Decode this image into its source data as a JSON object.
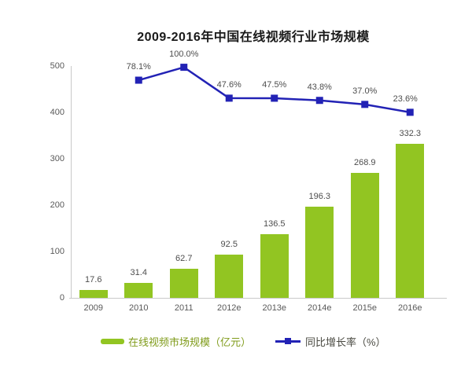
{
  "title": "2009-2016年中国在线视频行业市场规模",
  "chart_data": {
    "type": "bar",
    "title": "2009-2016年中国在线视频行业市场规模",
    "categories": [
      "2009",
      "2010",
      "2011",
      "2012e",
      "2013e",
      "2014e",
      "2015e",
      "2016e"
    ],
    "series": [
      {
        "name": "在线视频市场规模（亿元）",
        "type": "bar",
        "color": "#92C522",
        "values": [
          17.6,
          31.4,
          62.7,
          92.5,
          136.5,
          196.3,
          268.9,
          332.3
        ],
        "labels": [
          "17.6",
          "31.4",
          "62.7",
          "92.5",
          "136.5",
          "196.3",
          "268.9",
          "332.3"
        ]
      },
      {
        "name": "同比增长率（%）",
        "type": "line",
        "color": "#2222B5",
        "values": [
          null,
          78.1,
          100.0,
          47.6,
          47.5,
          43.8,
          37.0,
          23.6
        ],
        "labels": [
          null,
          "78.1%",
          "100.0%",
          "47.6%",
          "47.5%",
          "43.8%",
          "37.0%",
          "23.6%"
        ]
      }
    ],
    "y_axis": {
      "min": 0,
      "max": 500,
      "tick_labels": [
        "0",
        "100",
        "200",
        "300",
        "400",
        "500"
      ]
    },
    "grid": "off",
    "legend_position": "bottom",
    "legend": [
      {
        "label": "在线视频市场规模（亿元）",
        "swatch": "bar"
      },
      {
        "label": "同比增长率（%）",
        "swatch": "line"
      }
    ]
  }
}
